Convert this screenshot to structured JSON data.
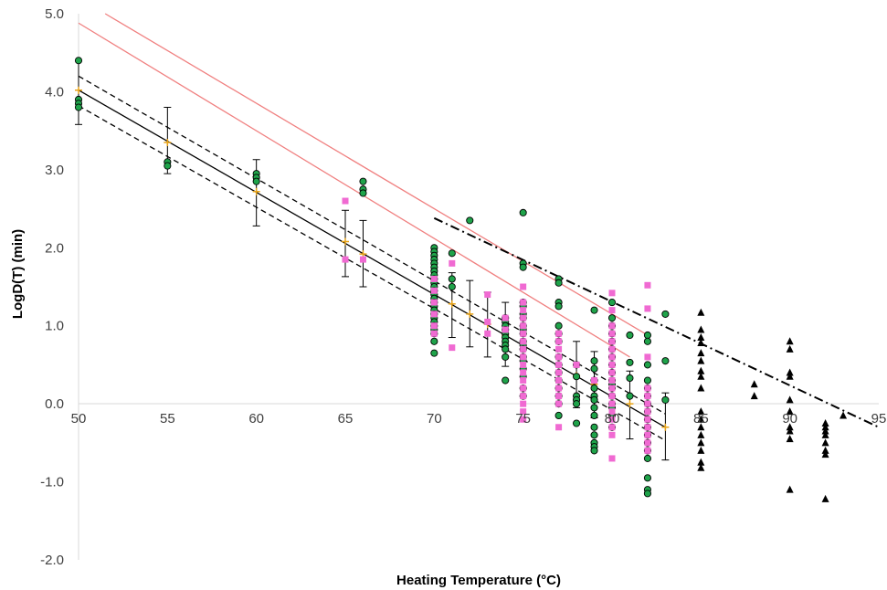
{
  "chart_data": {
    "type": "scatter",
    "title": "",
    "xlabel": "Heating Temperature (°C)",
    "ylabel": "LogD(T) (min)",
    "xlim": [
      50,
      95
    ],
    "ylim": [
      -2.0,
      5.0
    ],
    "x_ticks": [
      50,
      55,
      60,
      65,
      70,
      75,
      80,
      85,
      90,
      95
    ],
    "y_ticks": [
      -2.0,
      -1.0,
      0.0,
      1.0,
      2.0,
      3.0,
      4.0,
      5.0
    ],
    "x_tick_labels": [
      "50",
      "55",
      "60",
      "65",
      "70",
      "75",
      "80",
      "85",
      "90",
      "95"
    ],
    "y_tick_labels": [
      "-2.0",
      "-1.0",
      "0.0",
      "1.0",
      "2.0",
      "3.0",
      "4.0",
      "5.0"
    ],
    "grid": false,
    "legend": "none",
    "colors": {
      "green_points": "#1fa34a",
      "pink_points": "#f06ad2",
      "black_points": "#000000",
      "means": "#e8a317",
      "pink_lines": "#f08080",
      "regression": "#000000"
    },
    "series": [
      {
        "marker": "circle",
        "points": [
          [
            50,
            4.4
          ],
          [
            50,
            3.9
          ],
          [
            50,
            3.85
          ],
          [
            50,
            3.8
          ],
          [
            55,
            3.1
          ],
          [
            55,
            3.05
          ],
          [
            60,
            2.95
          ],
          [
            60,
            2.9
          ],
          [
            60,
            2.85
          ],
          [
            66,
            2.85
          ],
          [
            66,
            2.75
          ],
          [
            66,
            2.7
          ],
          [
            70,
            2.0
          ],
          [
            70,
            1.95
          ],
          [
            70,
            1.9
          ],
          [
            70,
            1.85
          ],
          [
            70,
            1.8
          ],
          [
            70,
            1.75
          ],
          [
            70,
            1.7
          ],
          [
            70,
            1.65
          ],
          [
            70,
            1.6
          ],
          [
            70,
            1.55
          ],
          [
            70,
            1.5
          ],
          [
            70,
            1.45
          ],
          [
            70,
            1.4
          ],
          [
            70,
            1.35
          ],
          [
            70,
            1.3
          ],
          [
            70,
            1.25
          ],
          [
            70,
            1.2
          ],
          [
            70,
            1.15
          ],
          [
            70,
            1.1
          ],
          [
            70,
            1.05
          ],
          [
            70,
            1.0
          ],
          [
            70,
            0.95
          ],
          [
            70,
            0.9
          ],
          [
            70,
            0.8
          ],
          [
            70,
            0.65
          ],
          [
            71,
            1.93
          ],
          [
            71,
            1.6
          ],
          [
            71,
            1.5
          ],
          [
            72,
            2.35
          ],
          [
            74,
            1.1
          ],
          [
            74,
            1.05
          ],
          [
            74,
            1.0
          ],
          [
            74,
            0.95
          ],
          [
            74,
            0.9
          ],
          [
            74,
            0.85
          ],
          [
            74,
            0.8
          ],
          [
            74,
            0.75
          ],
          [
            74,
            0.7
          ],
          [
            74,
            0.6
          ],
          [
            74,
            0.3
          ],
          [
            75,
            2.45
          ],
          [
            75,
            1.8
          ],
          [
            75,
            1.75
          ],
          [
            75,
            1.3
          ],
          [
            75,
            1.25
          ],
          [
            75,
            1.15
          ],
          [
            75,
            1.1
          ],
          [
            75,
            1.0
          ],
          [
            75,
            0.95
          ],
          [
            75,
            0.9
          ],
          [
            75,
            0.8
          ],
          [
            75,
            0.75
          ],
          [
            75,
            0.7
          ],
          [
            75,
            0.6
          ],
          [
            75,
            0.55
          ],
          [
            75,
            0.45
          ],
          [
            75,
            0.35
          ],
          [
            75,
            0.2
          ],
          [
            75,
            0.1
          ],
          [
            77,
            1.6
          ],
          [
            77,
            1.55
          ],
          [
            77,
            1.3
          ],
          [
            77,
            1.25
          ],
          [
            77,
            1.0
          ],
          [
            77,
            0.9
          ],
          [
            77,
            0.8
          ],
          [
            77,
            0.6
          ],
          [
            77,
            0.5
          ],
          [
            77,
            0.4
          ],
          [
            77,
            0.3
          ],
          [
            77,
            0.2
          ],
          [
            77,
            0.1
          ],
          [
            77,
            0.0
          ],
          [
            77,
            -0.15
          ],
          [
            78,
            0.5
          ],
          [
            78,
            0.35
          ],
          [
            78,
            0.1
          ],
          [
            78,
            0.05
          ],
          [
            78,
            0.0
          ],
          [
            78,
            -0.25
          ],
          [
            79,
            1.2
          ],
          [
            79,
            0.55
          ],
          [
            79,
            0.45
          ],
          [
            79,
            0.3
          ],
          [
            79,
            0.2
          ],
          [
            79,
            0.1
          ],
          [
            79,
            0.05
          ],
          [
            79,
            -0.05
          ],
          [
            79,
            -0.15
          ],
          [
            79,
            -0.3
          ],
          [
            79,
            -0.4
          ],
          [
            79,
            -0.5
          ],
          [
            79,
            -0.55
          ],
          [
            79,
            -0.6
          ],
          [
            80,
            1.3
          ],
          [
            80,
            1.1
          ],
          [
            80,
            1.0
          ],
          [
            80,
            0.9
          ],
          [
            80,
            0.8
          ],
          [
            80,
            0.7
          ],
          [
            80,
            0.6
          ],
          [
            80,
            0.5
          ],
          [
            80,
            0.4
          ],
          [
            80,
            0.3
          ],
          [
            80,
            0.25
          ],
          [
            80,
            0.2
          ],
          [
            80,
            0.1
          ],
          [
            80,
            0.0
          ],
          [
            80,
            -0.05
          ],
          [
            80,
            -0.15
          ],
          [
            80,
            -0.3
          ],
          [
            81,
            0.88
          ],
          [
            81,
            0.53
          ],
          [
            81,
            0.33
          ],
          [
            81,
            0.1
          ],
          [
            82,
            0.88
          ],
          [
            82,
            0.8
          ],
          [
            82,
            0.5
          ],
          [
            82,
            0.3
          ],
          [
            82,
            0.2
          ],
          [
            82,
            0.1
          ],
          [
            82,
            0.0
          ],
          [
            82,
            -0.1
          ],
          [
            82,
            -0.2
          ],
          [
            82,
            -0.3
          ],
          [
            82,
            -0.4
          ],
          [
            82,
            -0.5
          ],
          [
            82,
            -0.6
          ],
          [
            82,
            -0.7
          ],
          [
            82,
            -0.95
          ],
          [
            82,
            -1.1
          ],
          [
            82,
            -1.15
          ],
          [
            83,
            1.15
          ],
          [
            83,
            0.55
          ],
          [
            83,
            0.05
          ]
        ]
      },
      {
        "marker": "square",
        "points": [
          [
            65,
            2.6
          ],
          [
            65,
            1.85
          ],
          [
            66,
            1.85
          ],
          [
            70,
            1.6
          ],
          [
            70,
            1.45
          ],
          [
            70,
            1.3
          ],
          [
            70,
            1.15
          ],
          [
            70,
            1.0
          ],
          [
            70,
            0.9
          ],
          [
            71,
            1.8
          ],
          [
            71,
            0.72
          ],
          [
            73,
            1.4
          ],
          [
            73,
            1.05
          ],
          [
            73,
            0.9
          ],
          [
            74,
            1.1
          ],
          [
            74,
            0.95
          ],
          [
            75,
            1.5
          ],
          [
            75,
            1.3
          ],
          [
            75,
            1.2
          ],
          [
            75,
            1.1
          ],
          [
            75,
            1.0
          ],
          [
            75,
            0.9
          ],
          [
            75,
            0.8
          ],
          [
            75,
            0.7
          ],
          [
            75,
            0.6
          ],
          [
            75,
            0.5
          ],
          [
            75,
            0.4
          ],
          [
            75,
            0.3
          ],
          [
            75,
            0.2
          ],
          [
            75,
            0.1
          ],
          [
            75,
            0.0
          ],
          [
            75,
            -0.1
          ],
          [
            75,
            -0.2
          ],
          [
            77,
            0.9
          ],
          [
            77,
            0.8
          ],
          [
            77,
            0.7
          ],
          [
            77,
            0.6
          ],
          [
            77,
            0.5
          ],
          [
            77,
            0.4
          ],
          [
            77,
            0.3
          ],
          [
            77,
            0.2
          ],
          [
            77,
            0.1
          ],
          [
            77,
            0.0
          ],
          [
            77,
            -0.3
          ],
          [
            78,
            0.5
          ],
          [
            79,
            0.3
          ],
          [
            80,
            1.42
          ],
          [
            80,
            1.2
          ],
          [
            80,
            1.0
          ],
          [
            80,
            0.9
          ],
          [
            80,
            0.8
          ],
          [
            80,
            0.7
          ],
          [
            80,
            0.6
          ],
          [
            80,
            0.5
          ],
          [
            80,
            0.4
          ],
          [
            80,
            0.3
          ],
          [
            80,
            0.2
          ],
          [
            80,
            0.1
          ],
          [
            80,
            0.0
          ],
          [
            80,
            -0.1
          ],
          [
            80,
            -0.2
          ],
          [
            80,
            -0.3
          ],
          [
            80,
            -0.4
          ],
          [
            80,
            -0.7
          ],
          [
            82,
            1.52
          ],
          [
            82,
            1.22
          ],
          [
            82,
            0.6
          ],
          [
            82,
            0.2
          ],
          [
            82,
            0.1
          ],
          [
            82,
            0.0
          ],
          [
            82,
            -0.1
          ],
          [
            82,
            -0.2
          ],
          [
            82,
            -0.3
          ],
          [
            82,
            -0.4
          ],
          [
            82,
            -0.5
          ],
          [
            82,
            -0.6
          ]
        ]
      },
      {
        "marker": "triangle",
        "points": [
          [
            85,
            1.17
          ],
          [
            85,
            0.95
          ],
          [
            85,
            0.85
          ],
          [
            85,
            0.78
          ],
          [
            85,
            0.65
          ],
          [
            85,
            0.55
          ],
          [
            85,
            0.42
          ],
          [
            85,
            0.35
          ],
          [
            85,
            0.2
          ],
          [
            85,
            -0.1
          ],
          [
            85,
            -0.2
          ],
          [
            85,
            -0.3
          ],
          [
            85,
            -0.4
          ],
          [
            85,
            -0.5
          ],
          [
            85,
            -0.6
          ],
          [
            85,
            -0.75
          ],
          [
            85,
            -0.82
          ],
          [
            88,
            0.25
          ],
          [
            88,
            0.1
          ],
          [
            90,
            0.8
          ],
          [
            90,
            0.7
          ],
          [
            90,
            0.4
          ],
          [
            90,
            0.35
          ],
          [
            90,
            0.05
          ],
          [
            90,
            -0.1
          ],
          [
            90,
            -0.3
          ],
          [
            90,
            -0.35
          ],
          [
            90,
            -0.45
          ],
          [
            90,
            -1.1
          ],
          [
            92,
            -0.25
          ],
          [
            92,
            -0.3
          ],
          [
            92,
            -0.35
          ],
          [
            92,
            -0.4
          ],
          [
            92,
            -0.5
          ],
          [
            92,
            -0.6
          ],
          [
            92,
            -0.65
          ],
          [
            92,
            -1.22
          ],
          [
            93,
            -0.15
          ]
        ]
      },
      {
        "marker": "mean-with-error-bars",
        "points": [
          {
            "x": 50,
            "y": 4.02,
            "lo": 3.58,
            "hi": 4.4
          },
          {
            "x": 55,
            "y": 3.35,
            "lo": 2.95,
            "hi": 3.8
          },
          {
            "x": 60,
            "y": 2.72,
            "lo": 2.28,
            "hi": 3.13
          },
          {
            "x": 65,
            "y": 2.08,
            "lo": 1.63,
            "hi": 2.48
          },
          {
            "x": 66,
            "y": 1.92,
            "lo": 1.5,
            "hi": 2.35
          },
          {
            "x": 71,
            "y": 1.28,
            "lo": 0.85,
            "hi": 1.68
          },
          {
            "x": 72,
            "y": 1.15,
            "lo": 0.73,
            "hi": 1.58
          },
          {
            "x": 73,
            "y": 1.02,
            "lo": 0.6,
            "hi": 1.43
          },
          {
            "x": 74,
            "y": 0.88,
            "lo": 0.48,
            "hi": 1.3
          },
          {
            "x": 78,
            "y": 0.36,
            "lo": -0.05,
            "hi": 0.8
          },
          {
            "x": 79,
            "y": 0.25,
            "lo": -0.18,
            "hi": 0.67
          },
          {
            "x": 81,
            "y": 0.0,
            "lo": -0.45,
            "hi": 0.42
          },
          {
            "x": 83,
            "y": -0.3,
            "lo": -0.72,
            "hi": 0.14
          }
        ]
      }
    ],
    "lines": [
      {
        "style": "solid",
        "color": "#000000",
        "x": [
          50,
          83
        ],
        "y": [
          4.02,
          -0.3
        ]
      },
      {
        "style": "dashed",
        "color": "#000000",
        "x": [
          50,
          83
        ],
        "y": [
          4.2,
          -0.13
        ]
      },
      {
        "style": "dashed",
        "color": "#000000",
        "x": [
          50,
          83
        ],
        "y": [
          3.82,
          -0.47
        ]
      },
      {
        "style": "solid",
        "color": "#f08080",
        "x": [
          51.5,
          82
        ],
        "y": [
          5.0,
          0.88
        ]
      },
      {
        "style": "solid",
        "color": "#f08080",
        "x": [
          50,
          81
        ],
        "y": [
          4.88,
          0.6
        ]
      },
      {
        "style": "dash-dot",
        "color": "#000000",
        "x": [
          70,
          95
        ],
        "y": [
          2.38,
          -0.3
        ]
      }
    ]
  }
}
